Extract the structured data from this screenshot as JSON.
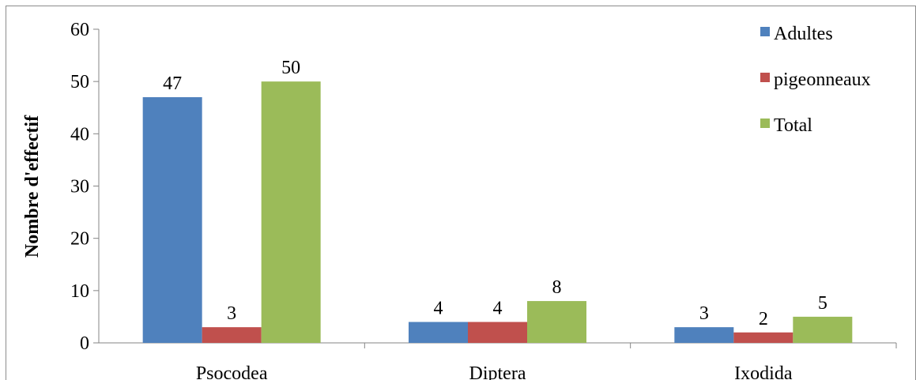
{
  "chart_data": {
    "type": "bar",
    "title": "",
    "xlabel": "",
    "ylabel": "Nombre d'effectif",
    "ylim": [
      0,
      60
    ],
    "yticks": [
      0,
      10,
      20,
      30,
      40,
      50,
      60
    ],
    "categories": [
      "Psocodea",
      "Diptera",
      "Ixodida"
    ],
    "series": [
      {
        "name": "Adultes",
        "values": [
          47,
          4,
          3
        ],
        "color": "#4f81bd"
      },
      {
        "name": "pigeonneaux",
        "values": [
          3,
          4,
          2
        ],
        "color": "#c0504d"
      },
      {
        "name": "Total",
        "values": [
          50,
          8,
          5
        ],
        "color": "#9bbb59"
      }
    ],
    "data_labels": true,
    "legend_position": "top-right",
    "grid": false
  }
}
